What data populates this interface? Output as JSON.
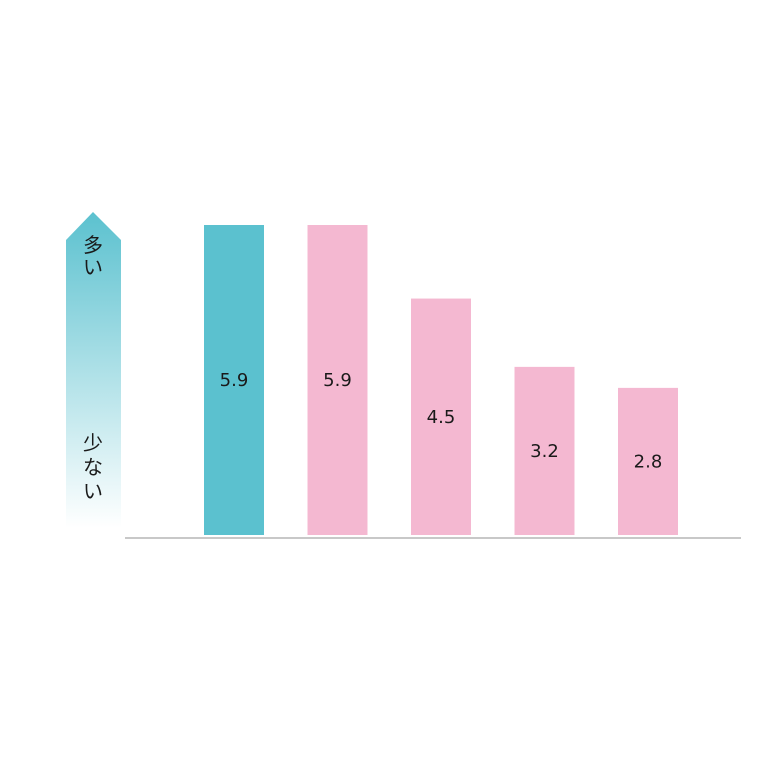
{
  "scale_arrow": {
    "top_label": "多い",
    "bottom_label": "少ない",
    "color_top": "#5bc1cf",
    "color_bottom": "#ffffff"
  },
  "colors": {
    "highlight": "#5bc1cf",
    "default": "#f4b8d1",
    "baseline": "#c8c8c8"
  },
  "chart_data": {
    "type": "bar",
    "title": "",
    "xlabel": "",
    "ylabel": "",
    "categories": [],
    "values": [
      5.9,
      5.9,
      4.5,
      3.2,
      2.8
    ],
    "labels": [
      "5.9",
      "5.9",
      "4.5",
      "3.2",
      "2.8"
    ],
    "highlight_index": 0,
    "ylim": [
      0,
      6.1
    ],
    "grid": false,
    "legend": "none"
  }
}
